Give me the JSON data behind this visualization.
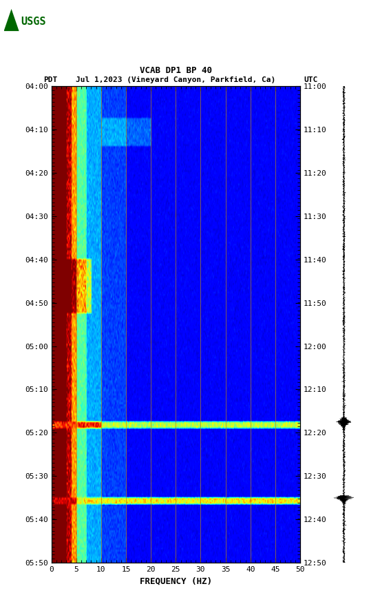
{
  "title_line1": "VCAB DP1 BP 40",
  "title_line2_left": "PDT",
  "title_line2_mid": "Jul 1,2023 (Vineyard Canyon, Parkfield, Ca)",
  "title_line2_right": "UTC",
  "xlabel": "FREQUENCY (HZ)",
  "freq_min": 0,
  "freq_max": 50,
  "pdt_ticks": [
    "04:00",
    "04:10",
    "04:20",
    "04:30",
    "04:40",
    "04:50",
    "05:00",
    "05:10",
    "05:20",
    "05:30",
    "05:40",
    "05:50"
  ],
  "utc_ticks": [
    "11:00",
    "11:10",
    "11:20",
    "11:30",
    "11:40",
    "11:50",
    "12:00",
    "12:10",
    "12:20",
    "12:30",
    "12:40",
    "12:50"
  ],
  "freq_ticks": [
    0,
    5,
    10,
    15,
    20,
    25,
    30,
    35,
    40,
    45,
    50
  ],
  "vertical_lines_freq": [
    5,
    10,
    15,
    20,
    25,
    30,
    35,
    40,
    45
  ],
  "background_color": "#ffffff",
  "golden_line_color": "#B8860B",
  "n_time": 220,
  "n_freq": 500,
  "usgs_green": "#006600",
  "eq1_row": 155,
  "eq2_row": 190,
  "eq1_thickness": 3,
  "eq2_thickness": 3,
  "seis_eq1_t": 155,
  "seis_eq2_t": 190,
  "font_size_ticks": 8,
  "font_size_title1": 9,
  "font_size_title2": 8,
  "font_size_xlabel": 9
}
